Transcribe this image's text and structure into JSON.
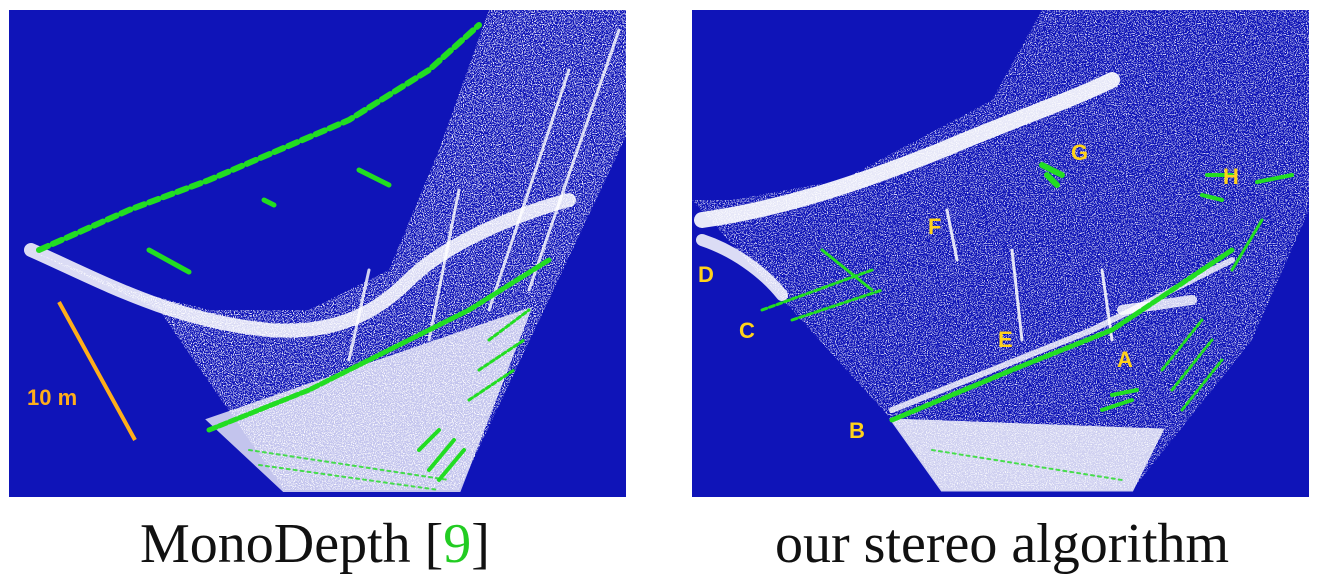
{
  "figure": {
    "panels": [
      {
        "caption_text": "MonoDepth [",
        "caption_ref": "9",
        "caption_close": "]",
        "scale_bar_label": "10 m"
      },
      {
        "caption_text": "our stereo algorithm",
        "markers": [
          "A",
          "B",
          "C",
          "D",
          "E",
          "F",
          "G",
          "H"
        ]
      }
    ],
    "colors": {
      "background": "#0f14b8",
      "lidar_points": "#22dd22",
      "estimated_points": "#ffffff",
      "marker_labels": "#ffd21a",
      "scale_bar": "#ffae1a"
    }
  }
}
